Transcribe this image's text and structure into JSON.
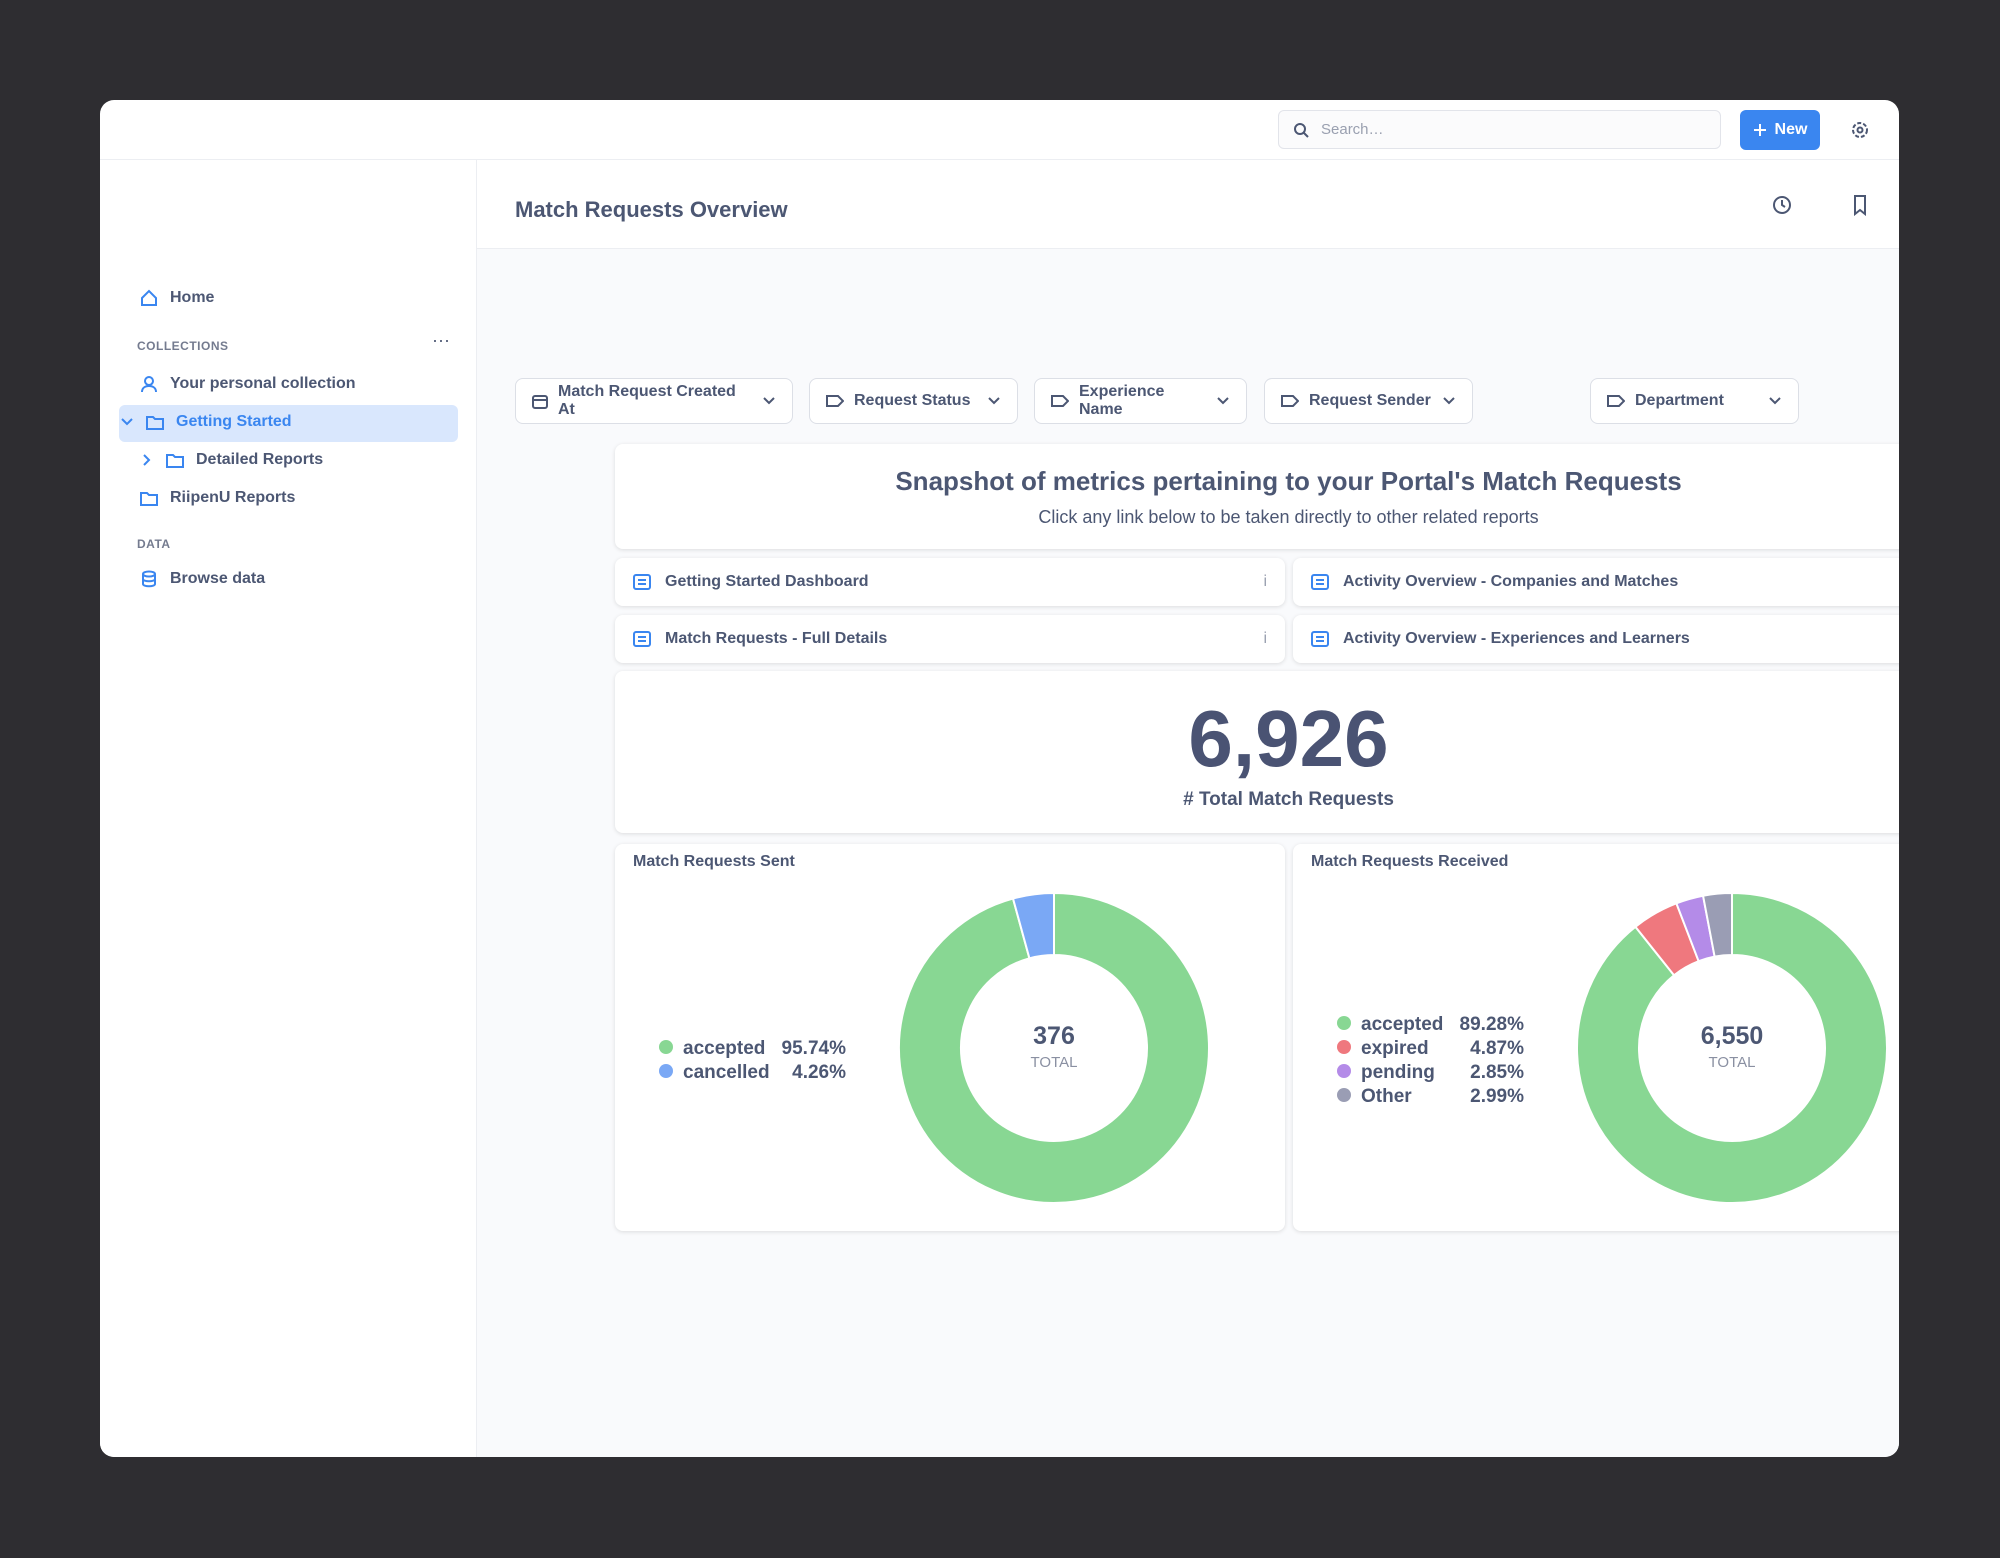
{
  "topbar": {
    "search_placeholder": "Search…",
    "new_button": "New"
  },
  "sidebar": {
    "home": "Home",
    "collections_heading": "COLLECTIONS",
    "collections": [
      "Your personal collection",
      "Getting Started",
      "Detailed Reports",
      "RiipenU Reports"
    ],
    "data_heading": "DATA",
    "browse": "Browse data"
  },
  "dashboard": {
    "title": "Match Requests Overview",
    "filters": [
      "Match Request Created At",
      "Request Status",
      "Experience Name",
      "Request Sender",
      "Department"
    ],
    "heading": "Snapshot of metrics pertaining to your Portal's Match Requests",
    "subheading": "Click any link below to be taken directly to other related reports",
    "links": [
      "Getting Started Dashboard",
      "Activity Overview - Companies and Matches",
      "Match Requests - Full Details",
      "Activity Overview - Experiences and Learners"
    ],
    "scalar": {
      "value": {
        "value": 6926,
        "label": "6,926"
      },
      "label": "# Total Match Requests"
    }
  },
  "chart_data": [
    {
      "type": "donut",
      "title": "Match Requests Sent",
      "categories": [
        "accepted",
        "cancelled"
      ],
      "values": [
        95.74,
        4.26
      ],
      "value_labels": [
        "95.74%",
        "4.26%"
      ],
      "colors": [
        "#88d793",
        "#7aa8f5"
      ],
      "total": 376,
      "total_label": "TOTAL"
    },
    {
      "type": "donut",
      "title": "Match Requests Received",
      "categories": [
        "accepted",
        "expired",
        "pending",
        "Other"
      ],
      "values": [
        89.28,
        4.87,
        2.85,
        2.99
      ],
      "value_labels": [
        "89.28%",
        "4.87%",
        "2.85%",
        "2.99%"
      ],
      "colors": [
        "#88d793",
        "#ef787e",
        "#b48be8",
        "#9a9db4"
      ],
      "total": {
        "value": 6550,
        "label": "6,550"
      },
      "total_label": "TOTAL"
    }
  ]
}
